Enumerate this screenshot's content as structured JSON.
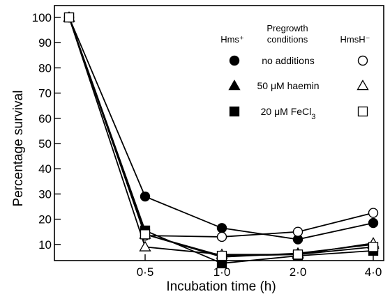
{
  "chart_data": {
    "type": "line",
    "xlabel": "Incubation time (h)",
    "ylabel": "Percentage survival",
    "categories": [
      "",
      "0·5",
      "1·0",
      "2·0",
      "4·0"
    ],
    "ylim": [
      0,
      100
    ],
    "yticks": [
      10,
      20,
      30,
      40,
      50,
      60,
      70,
      80,
      90,
      100
    ],
    "grid": false,
    "legend": {
      "placement": "top-right",
      "col_left": "Hms⁺",
      "col_mid_line1": "Pregrowth",
      "col_mid_line2": "conditions",
      "col_right": "HmsH⁻"
    },
    "series": [
      {
        "name": "no additions",
        "strain": "Hms+",
        "marker": "circle",
        "filled": true,
        "values": [
          100,
          29,
          16.5,
          12,
          18.5
        ]
      },
      {
        "name": "50 μM haemin",
        "strain": "Hms+",
        "marker": "triangle",
        "filled": true,
        "values": [
          100,
          14,
          5,
          6.5,
          10
        ]
      },
      {
        "name": "20 μM FeCl3",
        "strain": "Hms+",
        "marker": "square",
        "filled": true,
        "values": [
          100,
          15.5,
          2.5,
          5.5,
          7.5
        ]
      },
      {
        "name": "no additions",
        "strain": "HmsH-",
        "marker": "circle",
        "filled": false,
        "values": [
          100,
          13.5,
          13,
          15,
          22.5
        ]
      },
      {
        "name": "50 μM haemin",
        "strain": "HmsH-",
        "marker": "triangle",
        "filled": false,
        "values": [
          100,
          9,
          6,
          6,
          10.5
        ]
      },
      {
        "name": "20 μM FeCl3",
        "strain": "HmsH-",
        "marker": "square",
        "filled": false,
        "values": [
          100,
          14,
          5.5,
          6,
          9
        ]
      }
    ],
    "legend_labels": [
      {
        "text": "no additions",
        "marker": "circle"
      },
      {
        "text": "50 μM haemin",
        "marker": "triangle"
      },
      {
        "text": "20 μM FeCl",
        "sub": "3",
        "marker": "square"
      }
    ]
  }
}
